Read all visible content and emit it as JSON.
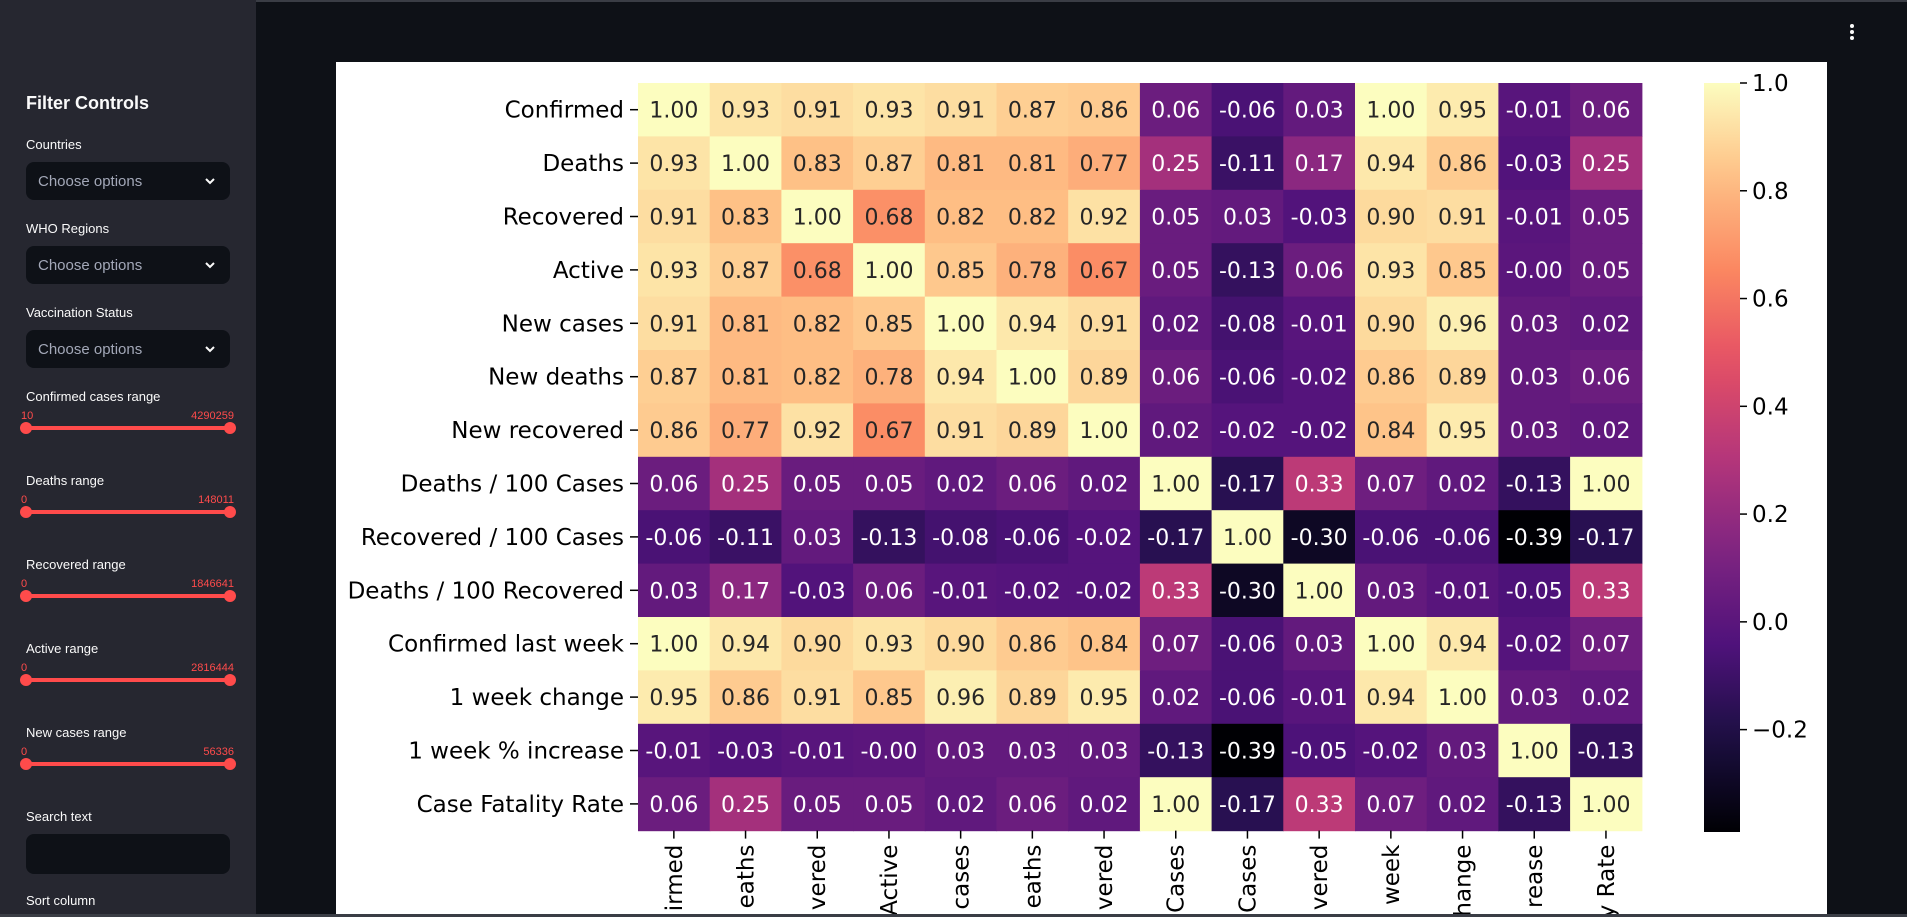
{
  "sidebar": {
    "title": "Filter Controls",
    "countries": {
      "label": "Countries",
      "placeholder": "Choose options"
    },
    "who_regions": {
      "label": "WHO Regions",
      "placeholder": "Choose options"
    },
    "vaccination": {
      "label": "Vaccination Status",
      "placeholder": "Choose options"
    },
    "confirmed_range": {
      "label": "Confirmed cases range",
      "min": "10",
      "max": "4290259"
    },
    "deaths_range": {
      "label": "Deaths range",
      "min": "0",
      "max": "148011"
    },
    "recovered_range": {
      "label": "Recovered range",
      "min": "0",
      "max": "1846641"
    },
    "active_range": {
      "label": "Active range",
      "min": "0",
      "max": "2816444"
    },
    "newcases_range": {
      "label": "New cases range",
      "min": "0",
      "max": "56336"
    },
    "search": {
      "label": "Search text"
    },
    "sort": {
      "label": "Sort column"
    }
  },
  "chart_data": {
    "type": "heatmap",
    "colormap": "magma",
    "row_labels": [
      "Confirmed",
      "Deaths",
      "Recovered",
      "Active",
      "New cases",
      "New deaths",
      "New recovered",
      "Deaths / 100 Cases",
      "Recovered / 100 Cases",
      "Deaths / 100 Recovered",
      "Confirmed last week",
      "1 week change",
      "1 week % increase",
      "Case Fatality Rate"
    ],
    "col_labels_visible": [
      "irmed",
      "eaths",
      "vered",
      "Active",
      "cases",
      "eaths",
      "vered",
      "Cases",
      "Cases",
      "vered",
      "week",
      "hange",
      "rease",
      "y Rate"
    ],
    "vmin": -0.39,
    "vmax": 1.0,
    "colorbar_ticks": [
      "1.0",
      "0.8",
      "0.6",
      "0.4",
      "0.2",
      "0.0",
      "−0.2"
    ],
    "colorbar_tick_values": [
      1.0,
      0.8,
      0.6,
      0.4,
      0.2,
      0.0,
      -0.2
    ],
    "values": [
      [
        "1.00",
        "0.93",
        "0.91",
        "0.93",
        "0.91",
        "0.87",
        "0.86",
        "0.06",
        "-0.06",
        "0.03",
        "1.00",
        "0.95",
        "-0.01",
        "0.06"
      ],
      [
        "0.93",
        "1.00",
        "0.83",
        "0.87",
        "0.81",
        "0.81",
        "0.77",
        "0.25",
        "-0.11",
        "0.17",
        "0.94",
        "0.86",
        "-0.03",
        "0.25"
      ],
      [
        "0.91",
        "0.83",
        "1.00",
        "0.68",
        "0.82",
        "0.82",
        "0.92",
        "0.05",
        "0.03",
        "-0.03",
        "0.90",
        "0.91",
        "-0.01",
        "0.05"
      ],
      [
        "0.93",
        "0.87",
        "0.68",
        "1.00",
        "0.85",
        "0.78",
        "0.67",
        "0.05",
        "-0.13",
        "0.06",
        "0.93",
        "0.85",
        "-0.00",
        "0.05"
      ],
      [
        "0.91",
        "0.81",
        "0.82",
        "0.85",
        "1.00",
        "0.94",
        "0.91",
        "0.02",
        "-0.08",
        "-0.01",
        "0.90",
        "0.96",
        "0.03",
        "0.02"
      ],
      [
        "0.87",
        "0.81",
        "0.82",
        "0.78",
        "0.94",
        "1.00",
        "0.89",
        "0.06",
        "-0.06",
        "-0.02",
        "0.86",
        "0.89",
        "0.03",
        "0.06"
      ],
      [
        "0.86",
        "0.77",
        "0.92",
        "0.67",
        "0.91",
        "0.89",
        "1.00",
        "0.02",
        "-0.02",
        "-0.02",
        "0.84",
        "0.95",
        "0.03",
        "0.02"
      ],
      [
        "0.06",
        "0.25",
        "0.05",
        "0.05",
        "0.02",
        "0.06",
        "0.02",
        "1.00",
        "-0.17",
        "0.33",
        "0.07",
        "0.02",
        "-0.13",
        "1.00"
      ],
      [
        "-0.06",
        "-0.11",
        "0.03",
        "-0.13",
        "-0.08",
        "-0.06",
        "-0.02",
        "-0.17",
        "1.00",
        "-0.30",
        "-0.06",
        "-0.06",
        "-0.39",
        "-0.17"
      ],
      [
        "0.03",
        "0.17",
        "-0.03",
        "0.06",
        "-0.01",
        "-0.02",
        "-0.02",
        "0.33",
        "-0.30",
        "1.00",
        "0.03",
        "-0.01",
        "-0.05",
        "0.33"
      ],
      [
        "1.00",
        "0.94",
        "0.90",
        "0.93",
        "0.90",
        "0.86",
        "0.84",
        "0.07",
        "-0.06",
        "0.03",
        "1.00",
        "0.94",
        "-0.02",
        "0.07"
      ],
      [
        "0.95",
        "0.86",
        "0.91",
        "0.85",
        "0.96",
        "0.89",
        "0.95",
        "0.02",
        "-0.06",
        "-0.01",
        "0.94",
        "1.00",
        "0.03",
        "0.02"
      ],
      [
        "-0.01",
        "-0.03",
        "-0.01",
        "-0.00",
        "0.03",
        "0.03",
        "0.03",
        "-0.13",
        "-0.39",
        "-0.05",
        "-0.02",
        "0.03",
        "1.00",
        "-0.13"
      ],
      [
        "0.06",
        "0.25",
        "0.05",
        "0.05",
        "0.02",
        "0.06",
        "0.02",
        "1.00",
        "-0.17",
        "0.33",
        "0.07",
        "0.02",
        "-0.13",
        "1.00"
      ]
    ]
  }
}
